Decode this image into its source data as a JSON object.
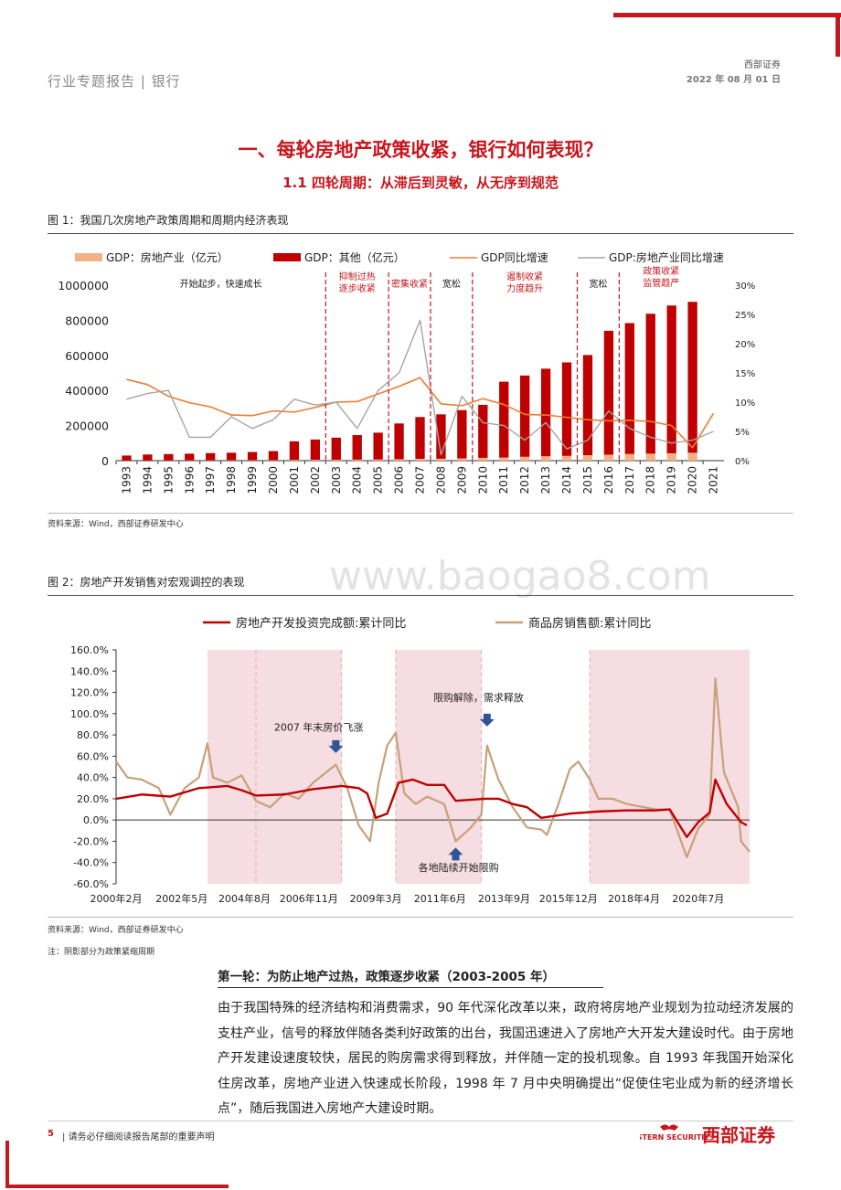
{
  "header": {
    "title": "行业专题报告 | 银行",
    "company": "西部证券",
    "date": "2022 年 08 月 01 日"
  },
  "section_title": "一、每轮房地产政策收紧，银行如何表现？",
  "subsection_title": "1.1  四轮周期：从滞后到灵敏，从无序到规范",
  "fig1": {
    "caption": "图 1：我国几次房地产政策周期和周期内经济表现",
    "source": "资料来源：Wind，西部证券研发中心"
  },
  "fig2": {
    "caption": "图 2：房地产开发销售对宏观调控的表现",
    "source": "资料来源：Wind，西部证券研发中心",
    "note": "注：阴影部分为政策紧缩周期"
  },
  "watermark": "www.baogao8.com",
  "paragraph": {
    "title": "第一轮：为防止地产过热，政策逐步收紧（2003-2005 年）",
    "text": "由于我国特殊的经济结构和消费需求，90 年代深化改革以来，政府将房地产业规划为拉动经济发展的支柱产业，信号的释放伴随各类利好政策的出台，我国迅速进入了房地产大开发大建设时代。由于房地产开发建设速度较快，居民的购房需求得到释放，并伴随一定的投机现象。自 1993 年我国开始深化住房改革，房地产业进入快速成长阶段，1998 年 7 月中央明确提出“促使住宅业成为新的经济增长点”，随后我国进入房地产大建设时期。"
  },
  "footer": {
    "page": "5",
    "text": "请务必仔细阅读报告尾部的重要声明",
    "logo_text": "西部证券",
    "logo_en": "WESTERN SECURITIES"
  },
  "colors": {
    "brand_red": "#c8161d",
    "gdp_re": "#f4b183",
    "gdp_other": "#c00000",
    "gdp_growth": "#ed7d31",
    "re_growth": "#a5a5a5",
    "invest": "#c00000",
    "sales": "#c8a07a",
    "shade": "#f6dde2"
  },
  "chart_data": [
    {
      "type": "bar",
      "categories": [
        "1993",
        "1994",
        "1995",
        "1996",
        "1997",
        "1998",
        "1999",
        "2000",
        "2001",
        "2002",
        "2003",
        "2004",
        "2005",
        "2006",
        "2007",
        "2008",
        "2009",
        "2010",
        "2011",
        "2012",
        "2013",
        "2014",
        "2015",
        "2016",
        "2017",
        "2018",
        "2019",
        "2020",
        "2021"
      ],
      "series": [
        {
          "name": "GDP：房地产业（亿元）",
          "axis": "left",
          "kind": "bar-stack",
          "values": [
            1000,
            1200,
            1500,
            1700,
            1900,
            2100,
            2300,
            2500,
            4000,
            4500,
            5000,
            5700,
            6500,
            8000,
            10500,
            11000,
            13000,
            16000,
            18000,
            22000,
            25000,
            27000,
            31000,
            34000,
            38000,
            40000,
            42000,
            45000,
            null
          ]
        },
        {
          "name": "GDP：其他（亿元）",
          "axis": "left",
          "kind": "bar-stack",
          "values": [
            28000,
            34000,
            36000,
            38000,
            41000,
            43000,
            47000,
            52000,
            106000,
            116000,
            126000,
            140000,
            153000,
            204000,
            238000,
            253000,
            275000,
            302000,
            432000,
            463000,
            499000,
            533000,
            571000,
            706000,
            746000,
            797000,
            842000,
            860000,
            null
          ]
        },
        {
          "name": "GDP同比增速",
          "axis": "right",
          "kind": "line",
          "values": [
            13.9,
            13.0,
            11.0,
            9.9,
            9.2,
            7.8,
            7.7,
            8.5,
            8.3,
            9.1,
            10.0,
            10.1,
            11.4,
            12.7,
            14.2,
            9.7,
            9.4,
            10.6,
            9.6,
            7.9,
            7.8,
            7.4,
            7.0,
            6.8,
            6.9,
            6.7,
            6.0,
            2.2,
            8.1
          ]
        },
        {
          "name": "GDP:房地产业同比增速",
          "axis": "right",
          "kind": "line",
          "values": [
            10.5,
            11.5,
            12.0,
            4.0,
            4.0,
            7.5,
            5.5,
            7.0,
            10.5,
            9.5,
            10.0,
            5.5,
            12.0,
            15.0,
            24.0,
            1.0,
            11.0,
            6.5,
            6.0,
            3.5,
            6.5,
            2.0,
            3.5,
            8.5,
            5.5,
            4.0,
            3.0,
            3.5,
            5.0
          ]
        }
      ],
      "ylim_left": [
        0,
        1000000
      ],
      "yticks_left": [
        "1000000",
        "800000",
        "600000",
        "400000",
        "200000",
        "0"
      ],
      "ylim_right": [
        0,
        30
      ],
      "yticks_right": [
        "30%",
        "25%",
        "20%",
        "15%",
        "10%",
        "5%",
        "0%"
      ],
      "period_labels": [
        "开始起步，快速成长",
        "抑制过热逐步收紧",
        "密集收紧",
        "宽松",
        "遏制收紧力度趋升",
        "宽松",
        "政策收紧监管趋严"
      ],
      "legend": "top"
    },
    {
      "type": "line",
      "x_ticks": [
        "2000年2月",
        "2002年5月",
        "2004年8月",
        "2006年11月",
        "2009年3月",
        "2011年6月",
        "2013年9月",
        "2015年12月",
        "2018年4月",
        "2020年7月"
      ],
      "ylim": [
        -60,
        160
      ],
      "y_ticks": [
        "160.0%",
        "140.0%",
        "120.0%",
        "100.0%",
        "80.0%",
        "60.0%",
        "40.0%",
        "20.0%",
        "0.0%",
        "-20.0%",
        "-40.0%",
        "-60.0%"
      ],
      "series": [
        {
          "name": "房地产开发投资完成额:累计同比",
          "points": [
            [
              2000.1,
              20
            ],
            [
              2001,
              24
            ],
            [
              2002,
              22
            ],
            [
              2003,
              30
            ],
            [
              2004,
              32
            ],
            [
              2004.5,
              28
            ],
            [
              2005,
              23
            ],
            [
              2006,
              24
            ],
            [
              2007,
              29
            ],
            [
              2008,
              32
            ],
            [
              2008.6,
              30
            ],
            [
              2008.9,
              25
            ],
            [
              2009.2,
              2
            ],
            [
              2009.6,
              6
            ],
            [
              2010,
              35
            ],
            [
              2010.5,
              38
            ],
            [
              2011,
              33
            ],
            [
              2011.6,
              33
            ],
            [
              2012,
              18
            ],
            [
              2013,
              20
            ],
            [
              2013.5,
              20
            ],
            [
              2014,
              15
            ],
            [
              2014.5,
              12
            ],
            [
              2015,
              2
            ],
            [
              2015.5,
              4
            ],
            [
              2016,
              6
            ],
            [
              2016.5,
              7
            ],
            [
              2017,
              8
            ],
            [
              2018,
              9
            ],
            [
              2019,
              9
            ],
            [
              2019.5,
              10
            ],
            [
              2020.1,
              -16
            ],
            [
              2020.5,
              -2
            ],
            [
              2020.9,
              7
            ],
            [
              2021.1,
              38
            ],
            [
              2021.5,
              15
            ],
            [
              2022,
              -2
            ],
            [
              2022.2,
              -5
            ]
          ]
        },
        {
          "name": "商品房销售额:累计同比",
          "points": [
            [
              2000.1,
              55
            ],
            [
              2000.5,
              40
            ],
            [
              2001,
              38
            ],
            [
              2001.6,
              30
            ],
            [
              2002,
              5
            ],
            [
              2002.5,
              30
            ],
            [
              2003,
              40
            ],
            [
              2003.3,
              72
            ],
            [
              2003.5,
              40
            ],
            [
              2004,
              35
            ],
            [
              2004.5,
              42
            ],
            [
              2005,
              18
            ],
            [
              2005.5,
              12
            ],
            [
              2006,
              25
            ],
            [
              2006.5,
              20
            ],
            [
              2007,
              35
            ],
            [
              2007.8,
              52
            ],
            [
              2008.2,
              30
            ],
            [
              2008.6,
              -5
            ],
            [
              2009,
              -20
            ],
            [
              2009.3,
              35
            ],
            [
              2009.6,
              70
            ],
            [
              2009.9,
              82
            ],
            [
              2010.2,
              25
            ],
            [
              2010.6,
              15
            ],
            [
              2011,
              22
            ],
            [
              2011.6,
              15
            ],
            [
              2012,
              -20
            ],
            [
              2012.5,
              -8
            ],
            [
              2012.9,
              5
            ],
            [
              2013.1,
              70
            ],
            [
              2013.5,
              38
            ],
            [
              2014,
              12
            ],
            [
              2014.5,
              -7
            ],
            [
              2015,
              -9
            ],
            [
              2015.2,
              -14
            ],
            [
              2015.6,
              15
            ],
            [
              2016,
              48
            ],
            [
              2016.3,
              55
            ],
            [
              2016.7,
              38
            ],
            [
              2017,
              20
            ],
            [
              2017.5,
              20
            ],
            [
              2018,
              15
            ],
            [
              2019,
              10
            ],
            [
              2019.5,
              10
            ],
            [
              2020.1,
              -35
            ],
            [
              2020.5,
              -8
            ],
            [
              2020.9,
              5
            ],
            [
              2021.1,
              133
            ],
            [
              2021.4,
              45
            ],
            [
              2021.9,
              12
            ],
            [
              2022,
              -20
            ],
            [
              2022.3,
              -30
            ]
          ]
        }
      ],
      "shaded_periods": [
        [
          2003.3,
          2005.0
        ],
        [
          2005.0,
          2008.0
        ],
        [
          2009.9,
          2012.9
        ],
        [
          2016.7,
          2022.3
        ]
      ],
      "annotations": [
        "2007 年末房价飞涨",
        "限购解除，需求释放",
        "各地陆续开始限购"
      ],
      "legend": "top"
    }
  ]
}
